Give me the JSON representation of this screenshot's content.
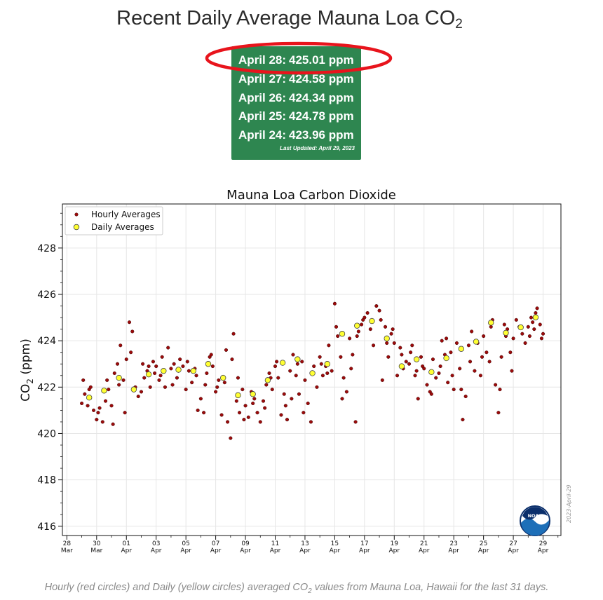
{
  "header": {
    "title_main": "Recent Daily Average Mauna Loa CO",
    "title_sub": "2"
  },
  "readings": [
    {
      "date": "April 28:",
      "value": "425.01 ppm"
    },
    {
      "date": "April 27:",
      "value": "424.58 ppm"
    },
    {
      "date": "April 26:",
      "value": "424.34 ppm"
    },
    {
      "date": "April 25:",
      "value": "424.78 ppm"
    },
    {
      "date": "April 24:",
      "value": "423.96 ppm"
    }
  ],
  "last_updated": "Last Updated: April 29, 2023",
  "caption": {
    "part1": "Hourly (red circles) and Daily (yellow circles) averaged CO",
    "sub": "2",
    "part2": " values from Mauna Loa, Hawaii for the last 31 days."
  },
  "colors": {
    "box_green": "#2e8650",
    "highlight_red": "#e8141c",
    "hourly_fill": "#9c0b0b",
    "daily_fill": "#ffff33",
    "noaa_blue": "#1d6fb8",
    "noaa_navy": "#0b2f6b"
  },
  "chart_data": {
    "type": "scatter",
    "title": "Mauna Loa Carbon Dioxide",
    "ylabel_main": "CO",
    "ylabel_sub": "2",
    "ylabel_unit": " (ppm)",
    "xlabel": "",
    "ylim": [
      415.6,
      429.9
    ],
    "xlim": [
      -0.3,
      33.2
    ],
    "yticks": [
      416,
      418,
      420,
      422,
      424,
      426,
      428
    ],
    "x_ticks": [
      {
        "day": 0,
        "day_label": "28",
        "month_label": "Mar"
      },
      {
        "day": 2,
        "day_label": "30",
        "month_label": "Mar"
      },
      {
        "day": 4,
        "day_label": "01",
        "month_label": "Apr"
      },
      {
        "day": 6,
        "day_label": "03",
        "month_label": "Apr"
      },
      {
        "day": 8,
        "day_label": "05",
        "month_label": "Apr"
      },
      {
        "day": 10,
        "day_label": "07",
        "month_label": "Apr"
      },
      {
        "day": 12,
        "day_label": "09",
        "month_label": "Apr"
      },
      {
        "day": 14,
        "day_label": "11",
        "month_label": "Apr"
      },
      {
        "day": 16,
        "day_label": "13",
        "month_label": "Apr"
      },
      {
        "day": 18,
        "day_label": "15",
        "month_label": "Apr"
      },
      {
        "day": 20,
        "day_label": "17",
        "month_label": "Apr"
      },
      {
        "day": 22,
        "day_label": "19",
        "month_label": "Apr"
      },
      {
        "day": 24,
        "day_label": "21",
        "month_label": "Apr"
      },
      {
        "day": 26,
        "day_label": "23",
        "month_label": "Apr"
      },
      {
        "day": 28,
        "day_label": "25",
        "month_label": "Apr"
      },
      {
        "day": 30,
        "day_label": "27",
        "month_label": "Apr"
      },
      {
        "day": 32,
        "day_label": "29",
        "month_label": "Apr"
      }
    ],
    "legend": {
      "position": "top-left",
      "entries": [
        "Hourly Averages",
        "Daily Averages"
      ]
    },
    "watermark": "2023-April-29",
    "logo_text": "NOAA",
    "grid": true,
    "series": [
      {
        "name": "Daily Averages",
        "points": [
          [
            1.5,
            421.55
          ],
          [
            2.5,
            421.85
          ],
          [
            3.5,
            422.4
          ],
          [
            4.5,
            421.9
          ],
          [
            5.5,
            422.55
          ],
          [
            6.5,
            422.7
          ],
          [
            7.5,
            422.75
          ],
          [
            8.5,
            422.7
          ],
          [
            9.5,
            423.0
          ],
          [
            10.5,
            422.4
          ],
          [
            11.5,
            421.65
          ],
          [
            12.5,
            421.7
          ],
          [
            13.5,
            422.3
          ],
          [
            14.5,
            423.05
          ],
          [
            15.5,
            423.2
          ],
          [
            16.5,
            422.6
          ],
          [
            17.5,
            423.0
          ],
          [
            18.5,
            424.3
          ],
          [
            19.5,
            424.65
          ],
          [
            20.5,
            424.85
          ],
          [
            21.5,
            424.1
          ],
          [
            22.5,
            422.9
          ],
          [
            23.5,
            423.2
          ],
          [
            24.5,
            422.65
          ],
          [
            25.5,
            423.25
          ],
          [
            26.5,
            423.65
          ],
          [
            27.5,
            423.96
          ],
          [
            28.5,
            424.78
          ],
          [
            29.5,
            424.34
          ],
          [
            30.5,
            424.58
          ],
          [
            31.5,
            425.01
          ]
        ]
      },
      {
        "name": "Hourly Averages",
        "points": [
          [
            1.0,
            421.3
          ],
          [
            1.2,
            421.7
          ],
          [
            1.4,
            421.2
          ],
          [
            1.6,
            422.0
          ],
          [
            1.8,
            421.0
          ],
          [
            2.0,
            420.6
          ],
          [
            2.2,
            421.1
          ],
          [
            2.4,
            420.5
          ],
          [
            2.6,
            421.4
          ],
          [
            2.8,
            421.9
          ],
          [
            1.1,
            422.3
          ],
          [
            1.5,
            421.9
          ],
          [
            2.1,
            420.9
          ],
          [
            2.7,
            422.3
          ],
          [
            3.0,
            421.2
          ],
          [
            3.2,
            422.6
          ],
          [
            3.4,
            423.0
          ],
          [
            3.6,
            423.8
          ],
          [
            3.8,
            422.3
          ],
          [
            4.0,
            423.2
          ],
          [
            4.2,
            424.8
          ],
          [
            4.4,
            424.4
          ],
          [
            4.6,
            422.0
          ],
          [
            4.8,
            421.6
          ],
          [
            3.1,
            420.4
          ],
          [
            3.5,
            422.1
          ],
          [
            3.9,
            420.9
          ],
          [
            4.3,
            423.5
          ],
          [
            5.0,
            421.8
          ],
          [
            5.2,
            422.4
          ],
          [
            5.4,
            422.7
          ],
          [
            5.6,
            422.0
          ],
          [
            5.8,
            423.1
          ],
          [
            6.0,
            422.9
          ],
          [
            6.2,
            422.3
          ],
          [
            6.4,
            423.3
          ],
          [
            6.6,
            422.0
          ],
          [
            6.8,
            423.7
          ],
          [
            5.1,
            423.0
          ],
          [
            5.5,
            422.9
          ],
          [
            5.9,
            422.6
          ],
          [
            6.3,
            422.5
          ],
          [
            7.0,
            422.8
          ],
          [
            7.2,
            423.0
          ],
          [
            7.4,
            422.4
          ],
          [
            7.6,
            423.2
          ],
          [
            7.8,
            422.9
          ],
          [
            8.0,
            421.9
          ],
          [
            8.2,
            422.7
          ],
          [
            8.4,
            422.2
          ],
          [
            8.6,
            422.8
          ],
          [
            8.8,
            421.0
          ],
          [
            7.1,
            422.1
          ],
          [
            7.5,
            422.7
          ],
          [
            8.1,
            423.1
          ],
          [
            8.7,
            422.5
          ],
          [
            9.0,
            421.5
          ],
          [
            9.2,
            420.9
          ],
          [
            9.4,
            422.6
          ],
          [
            9.6,
            423.3
          ],
          [
            9.8,
            422.9
          ],
          [
            10.0,
            421.8
          ],
          [
            10.2,
            422.3
          ],
          [
            10.4,
            420.8
          ],
          [
            10.6,
            422.2
          ],
          [
            10.8,
            420.5
          ],
          [
            9.3,
            422.1
          ],
          [
            9.7,
            423.4
          ],
          [
            10.1,
            422.0
          ],
          [
            10.7,
            423.6
          ],
          [
            11.0,
            419.8
          ],
          [
            11.2,
            424.3
          ],
          [
            11.4,
            421.4
          ],
          [
            11.6,
            420.9
          ],
          [
            11.8,
            421.9
          ],
          [
            12.0,
            421.2
          ],
          [
            12.2,
            420.7
          ],
          [
            12.4,
            421.8
          ],
          [
            12.6,
            421.5
          ],
          [
            12.8,
            420.9
          ],
          [
            11.1,
            423.2
          ],
          [
            11.5,
            422.4
          ],
          [
            11.9,
            420.6
          ],
          [
            12.5,
            421.3
          ],
          [
            13.0,
            420.5
          ],
          [
            13.2,
            421.4
          ],
          [
            13.4,
            422.1
          ],
          [
            13.6,
            422.6
          ],
          [
            13.8,
            421.9
          ],
          [
            14.0,
            422.9
          ],
          [
            14.2,
            422.4
          ],
          [
            14.4,
            420.8
          ],
          [
            14.6,
            421.7
          ],
          [
            14.8,
            420.6
          ],
          [
            13.3,
            421.1
          ],
          [
            13.7,
            422.4
          ],
          [
            14.1,
            423.1
          ],
          [
            14.7,
            421.2
          ],
          [
            15.0,
            422.7
          ],
          [
            15.2,
            423.4
          ],
          [
            15.4,
            422.5
          ],
          [
            15.6,
            421.7
          ],
          [
            15.8,
            423.1
          ],
          [
            16.0,
            422.3
          ],
          [
            16.2,
            421.3
          ],
          [
            16.4,
            420.5
          ],
          [
            16.6,
            422.9
          ],
          [
            16.8,
            422.0
          ],
          [
            15.1,
            421.5
          ],
          [
            15.5,
            423.0
          ],
          [
            15.9,
            420.9
          ],
          [
            16.5,
            422.6
          ],
          [
            17.0,
            423.3
          ],
          [
            17.2,
            422.5
          ],
          [
            17.4,
            422.9
          ],
          [
            17.6,
            423.8
          ],
          [
            17.8,
            422.7
          ],
          [
            18.0,
            425.6
          ],
          [
            18.2,
            424.2
          ],
          [
            18.4,
            423.3
          ],
          [
            18.6,
            422.4
          ],
          [
            18.8,
            421.8
          ],
          [
            17.1,
            423.0
          ],
          [
            17.5,
            422.6
          ],
          [
            18.1,
            424.6
          ],
          [
            18.5,
            421.5
          ],
          [
            19.0,
            424.1
          ],
          [
            19.2,
            423.4
          ],
          [
            19.4,
            420.5
          ],
          [
            19.6,
            424.4
          ],
          [
            19.8,
            424.7
          ],
          [
            20.0,
            425.0
          ],
          [
            20.2,
            425.2
          ],
          [
            20.4,
            424.5
          ],
          [
            20.6,
            423.8
          ],
          [
            20.8,
            425.5
          ],
          [
            19.1,
            422.8
          ],
          [
            19.5,
            424.2
          ],
          [
            19.9,
            424.9
          ],
          [
            20.5,
            424.9
          ],
          [
            21.0,
            425.3
          ],
          [
            21.2,
            422.3
          ],
          [
            21.4,
            424.6
          ],
          [
            21.6,
            423.3
          ],
          [
            21.8,
            424.3
          ],
          [
            22.0,
            423.9
          ],
          [
            22.2,
            422.5
          ],
          [
            22.4,
            423.7
          ],
          [
            22.6,
            422.8
          ],
          [
            22.8,
            423.1
          ],
          [
            21.1,
            424.9
          ],
          [
            21.5,
            423.9
          ],
          [
            21.9,
            424.5
          ],
          [
            22.5,
            423.4
          ],
          [
            23.0,
            423.0
          ],
          [
            23.2,
            423.8
          ],
          [
            23.4,
            422.5
          ],
          [
            23.6,
            421.5
          ],
          [
            23.8,
            423.3
          ],
          [
            24.0,
            422.8
          ],
          [
            24.2,
            422.1
          ],
          [
            24.4,
            421.8
          ],
          [
            24.6,
            423.2
          ],
          [
            24.8,
            422.4
          ],
          [
            23.1,
            423.5
          ],
          [
            23.5,
            422.7
          ],
          [
            23.9,
            422.9
          ],
          [
            24.5,
            421.7
          ],
          [
            25.0,
            422.6
          ],
          [
            25.2,
            424.0
          ],
          [
            25.4,
            423.4
          ],
          [
            25.6,
            422.2
          ],
          [
            25.8,
            423.5
          ],
          [
            26.0,
            421.9
          ],
          [
            26.2,
            423.9
          ],
          [
            26.4,
            422.8
          ],
          [
            26.6,
            420.6
          ],
          [
            26.8,
            421.6
          ],
          [
            25.1,
            422.9
          ],
          [
            25.5,
            424.1
          ],
          [
            25.9,
            422.5
          ],
          [
            26.5,
            421.9
          ],
          [
            27.0,
            423.8
          ],
          [
            27.2,
            424.4
          ],
          [
            27.4,
            422.7
          ],
          [
            27.6,
            423.9
          ],
          [
            27.8,
            422.5
          ],
          [
            28.0,
            424.2
          ],
          [
            28.2,
            423.5
          ],
          [
            28.4,
            423.1
          ],
          [
            28.6,
            424.9
          ],
          [
            28.8,
            422.1
          ],
          [
            27.1,
            423.1
          ],
          [
            27.5,
            424.0
          ],
          [
            27.9,
            423.3
          ],
          [
            28.5,
            424.6
          ],
          [
            29.0,
            420.9
          ],
          [
            29.2,
            423.3
          ],
          [
            29.4,
            424.7
          ],
          [
            29.6,
            424.5
          ],
          [
            29.8,
            423.5
          ],
          [
            30.0,
            424.1
          ],
          [
            30.2,
            424.9
          ],
          [
            30.4,
            424.6
          ],
          [
            30.6,
            424.3
          ],
          [
            30.8,
            423.9
          ],
          [
            29.1,
            421.9
          ],
          [
            29.5,
            424.2
          ],
          [
            29.9,
            422.7
          ],
          [
            30.5,
            424.6
          ],
          [
            31.0,
            424.6
          ],
          [
            31.2,
            425.0
          ],
          [
            31.4,
            424.5
          ],
          [
            31.6,
            425.4
          ],
          [
            31.8,
            424.7
          ],
          [
            32.0,
            424.3
          ],
          [
            31.1,
            424.2
          ],
          [
            31.5,
            425.2
          ],
          [
            31.9,
            424.1
          ],
          [
            31.3,
            424.8
          ]
        ]
      }
    ]
  }
}
